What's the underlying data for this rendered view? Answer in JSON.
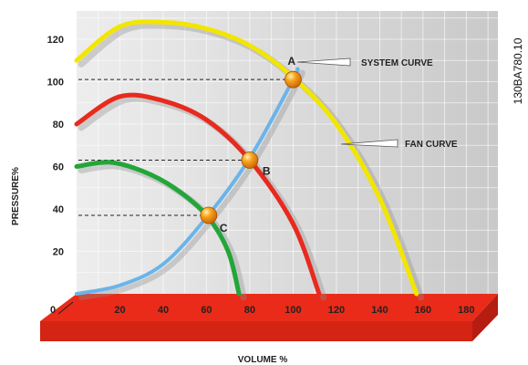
{
  "chart_data": {
    "type": "line",
    "title": "",
    "xlabel": "VOLUME %",
    "ylabel": "PRESSURE%",
    "xlim": [
      0,
      180
    ],
    "ylim": [
      0,
      130
    ],
    "x_ticks": [
      "20",
      "40",
      "60",
      "80",
      "100",
      "120",
      "140",
      "160",
      "180"
    ],
    "y_ticks": [
      "20",
      "40",
      "60",
      "80",
      "100",
      "120"
    ],
    "origin_label": "0",
    "grid": true,
    "series": [
      {
        "name": "",
        "color": "#f2e600",
        "x": [
          0,
          20,
          40,
          60,
          80,
          100,
          120,
          140,
          157
        ],
        "y": [
          110,
          126,
          128,
          125,
          117,
          102,
          80,
          45,
          0
        ]
      },
      {
        "name": "",
        "color": "#e82a1e",
        "x": [
          0,
          20,
          40,
          60,
          80,
          100,
          112
        ],
        "y": [
          80,
          93,
          91,
          82,
          63,
          33,
          0
        ]
      },
      {
        "name": "",
        "color": "#22a638",
        "x": [
          0,
          15,
          30,
          45,
          60,
          70,
          75
        ],
        "y": [
          60,
          62,
          58,
          50,
          37,
          20,
          0
        ]
      },
      {
        "name": "",
        "color": "#6ab4ea",
        "x": [
          0,
          20,
          40,
          60,
          80,
          100,
          102
        ],
        "y": [
          0,
          4,
          14,
          36,
          64,
          101,
          106
        ]
      }
    ],
    "points": [
      {
        "label": "A",
        "x": 100,
        "y": 101
      },
      {
        "label": "B",
        "x": 80,
        "y": 63
      },
      {
        "label": "C",
        "x": 61,
        "y": 37
      }
    ],
    "annotations": [
      "SYSTEM CURVE",
      "FAN CURVE"
    ],
    "figure_id": "130BA780.10"
  }
}
